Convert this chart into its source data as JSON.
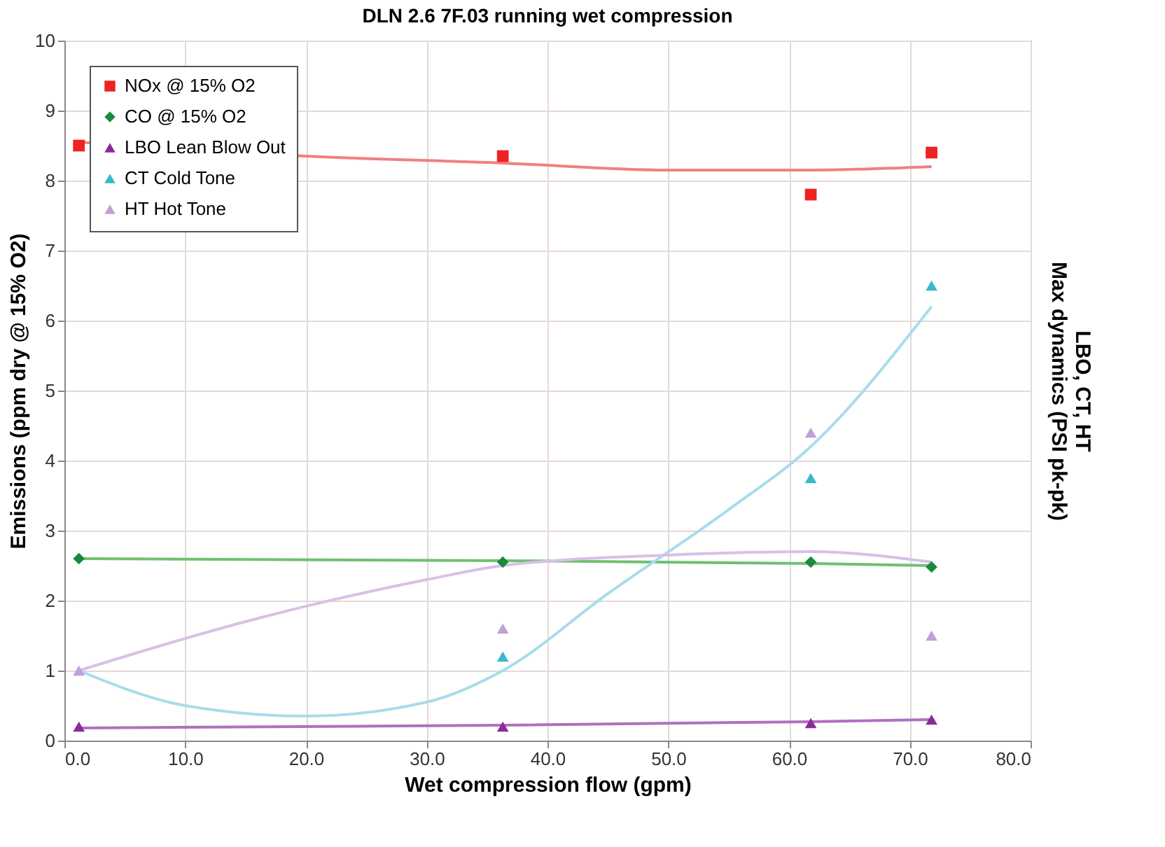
{
  "chart_data": {
    "type": "scatter",
    "title": "DLN 2.6 7F.03 running wet compression",
    "xlabel": "Wet compression flow (gpm)",
    "ylabel": "Emissions (ppm dry @ 15% O2)",
    "y2label": "LBO, CT, HT\nMax dynamics (PSI pk-pk)",
    "x": [
      1.2,
      36.3,
      61.8,
      71.8
    ],
    "xlim": [
      0,
      80
    ],
    "xticks": [
      {
        "value": 0,
        "label": "0.0"
      },
      {
        "value": 10,
        "label": "10.0"
      },
      {
        "value": 20,
        "label": "20.0"
      },
      {
        "value": 30,
        "label": "30.0"
      },
      {
        "value": 40,
        "label": "40.0"
      },
      {
        "value": 50,
        "label": "50.0"
      },
      {
        "value": 60,
        "label": "60.0"
      },
      {
        "value": 70,
        "label": "70.0"
      },
      {
        "value": 80,
        "label": "80.0"
      }
    ],
    "ylim": [
      0,
      10
    ],
    "yticks": [
      0,
      1,
      2,
      3,
      4,
      5,
      6,
      7,
      8,
      9,
      10
    ],
    "grid": true,
    "legend": "top left",
    "series": [
      {
        "name": "NOx @ 15% O2",
        "color": "#ee2222",
        "marker": "square",
        "values": [
          8.5,
          8.35,
          7.8,
          8.4
        ]
      },
      {
        "name": "CO @ 15% O2",
        "color": "#1a8a3a",
        "marker": "diamond",
        "values": [
          2.6,
          2.55,
          2.55,
          2.48
        ]
      },
      {
        "name": "LBO Lean Blow Out",
        "color": "#8b2a9b",
        "marker": "triangle",
        "values": [
          0.2,
          0.2,
          0.25,
          0.3
        ]
      },
      {
        "name": "CT    Cold Tone",
        "color": "#3ab8c8",
        "marker": "triangle",
        "values": [
          null,
          1.2,
          3.75,
          6.5
        ]
      },
      {
        "name": "HT    Hot Tone",
        "color": "#c0a0d8",
        "marker": "triangle",
        "values": [
          1.0,
          1.6,
          4.4,
          1.5
        ]
      },
      {
        "type": "line",
        "color": "#f08080",
        "x": [
          1.2,
          20,
          36.3,
          50,
          61.8,
          71.8
        ],
        "values": [
          8.55,
          8.35,
          8.25,
          8.15,
          8.15,
          8.2
        ]
      },
      {
        "type": "line",
        "color": "#70c070",
        "x": [
          1.2,
          36.3,
          61.8,
          71.8
        ],
        "values": [
          2.6,
          2.57,
          2.53,
          2.5
        ]
      },
      {
        "type": "line",
        "color": "#b070c0",
        "x": [
          1.2,
          36.3,
          61.8,
          71.8
        ],
        "values": [
          0.18,
          0.22,
          0.27,
          0.3
        ]
      },
      {
        "type": "line",
        "color": "#a8dcea",
        "x": [
          1.2,
          10,
          20,
          30,
          36.3,
          45,
          55,
          61.8,
          71.8
        ],
        "values": [
          1.0,
          0.5,
          0.35,
          0.55,
          1.0,
          2.1,
          3.3,
          4.2,
          6.2
        ]
      },
      {
        "type": "line",
        "color": "#d8c0e8",
        "x": [
          1.2,
          15,
          30,
          36.3,
          50,
          61.8,
          71.8
        ],
        "values": [
          1.0,
          1.7,
          2.3,
          2.5,
          2.65,
          2.7,
          2.55
        ]
      }
    ]
  }
}
